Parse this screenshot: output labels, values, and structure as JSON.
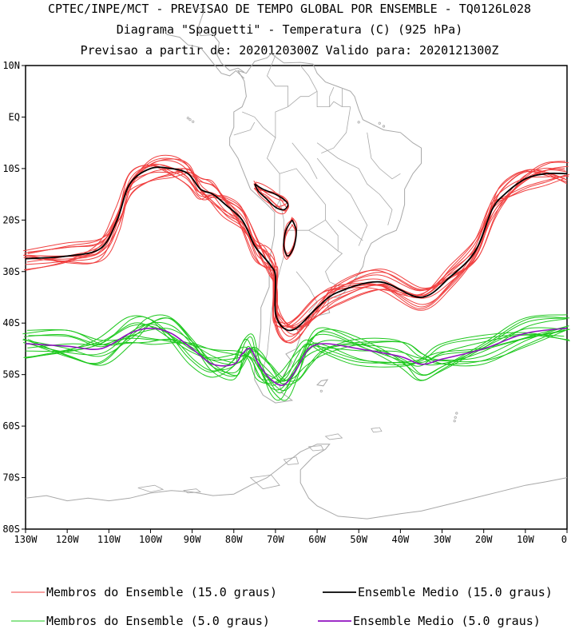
{
  "header": {
    "line1": "CPTEC/INPE/MCT - PREVISAO DE TEMPO GLOBAL POR ENSEMBLE - TQ0126L028",
    "line2": "Diagrama \"Spaguetti\" - Temperatura (C) (925 hPa)",
    "line3": "Previsao a partir de: 2020120300Z  Valido para: 2020121300Z"
  },
  "chart_data": {
    "type": "line",
    "title": "Diagrama \"Spaguetti\" - Temperatura (C) (925 hPa)",
    "xlim": [
      -130,
      0
    ],
    "ylim": [
      -80,
      10
    ],
    "x_ticks": [
      -130,
      -120,
      -110,
      -100,
      -90,
      -80,
      -70,
      -60,
      -50,
      -40,
      -30,
      -20,
      -10,
      0
    ],
    "x_tick_labels": [
      "130W",
      "120W",
      "110W",
      "100W",
      "90W",
      "80W",
      "70W",
      "60W",
      "50W",
      "40W",
      "30W",
      "20W",
      "10W",
      "0"
    ],
    "y_ticks": [
      10,
      0,
      -10,
      -20,
      -30,
      -40,
      -50,
      -60,
      -70,
      -80
    ],
    "y_tick_labels": [
      "10N",
      "EQ",
      "10S",
      "20S",
      "30S",
      "40S",
      "50S",
      "60S",
      "70S",
      "80S"
    ],
    "colors": {
      "members_15": "#f04040",
      "mean_15": "#000000",
      "members_5": "#1ec81e",
      "mean_5": "#9010c0",
      "coast": "#a8a8a8"
    },
    "series": [
      {
        "name": "Ensemble Medio (15.0 graus)",
        "color": "#000000",
        "points": [
          [
            -130,
            -27.5
          ],
          [
            -120,
            -27
          ],
          [
            -112,
            -25.5
          ],
          [
            -108,
            -20
          ],
          [
            -105,
            -13
          ],
          [
            -100,
            -10
          ],
          [
            -95,
            -10
          ],
          [
            -91,
            -11
          ],
          [
            -88,
            -14
          ],
          [
            -85,
            -15
          ],
          [
            -82,
            -17
          ],
          [
            -78,
            -20
          ],
          [
            -75,
            -25
          ],
          [
            -73,
            -27
          ],
          [
            -71,
            -29
          ],
          [
            -70,
            -31
          ],
          [
            -70,
            -38
          ],
          [
            -68,
            -41
          ],
          [
            -65,
            -41
          ],
          [
            -60,
            -37
          ],
          [
            -55,
            -34
          ],
          [
            -45,
            -32
          ],
          [
            -35,
            -35
          ],
          [
            -28,
            -31
          ],
          [
            -22,
            -26
          ],
          [
            -18,
            -18
          ],
          [
            -15,
            -15
          ],
          [
            -10,
            -12
          ],
          [
            -5,
            -11
          ],
          [
            0,
            -11
          ]
        ]
      },
      {
        "name": "Ensemble Medio (5.0 graus)",
        "color": "#9010c0",
        "points": [
          [
            -130,
            -44
          ],
          [
            -120,
            -44.5
          ],
          [
            -112,
            -45
          ],
          [
            -105,
            -42
          ],
          [
            -100,
            -41
          ],
          [
            -95,
            -42
          ],
          [
            -90,
            -45
          ],
          [
            -85,
            -48
          ],
          [
            -80,
            -48
          ],
          [
            -78,
            -46
          ],
          [
            -76,
            -45
          ],
          [
            -74,
            -48
          ],
          [
            -71,
            -51
          ],
          [
            -68,
            -52
          ],
          [
            -65,
            -49
          ],
          [
            -62,
            -45
          ],
          [
            -58,
            -44
          ],
          [
            -50,
            -45
          ],
          [
            -40,
            -46.5
          ],
          [
            -35,
            -48
          ],
          [
            -30,
            -47
          ],
          [
            -20,
            -45
          ],
          [
            -10,
            -42
          ],
          [
            0,
            -41
          ]
        ]
      }
    ],
    "legend": {
      "placement": "bottom",
      "entries": [
        {
          "label": "Membros do Ensemble (15.0 graus)",
          "color": "#f04040"
        },
        {
          "label": "Ensemble Medio (15.0 graus)",
          "color": "#000000"
        },
        {
          "label": "Membros do Ensemble (5.0 graus)",
          "color": "#1ec81e"
        },
        {
          "label": "Ensemble Medio (5.0 graus)",
          "color": "#9010c0"
        }
      ]
    }
  }
}
